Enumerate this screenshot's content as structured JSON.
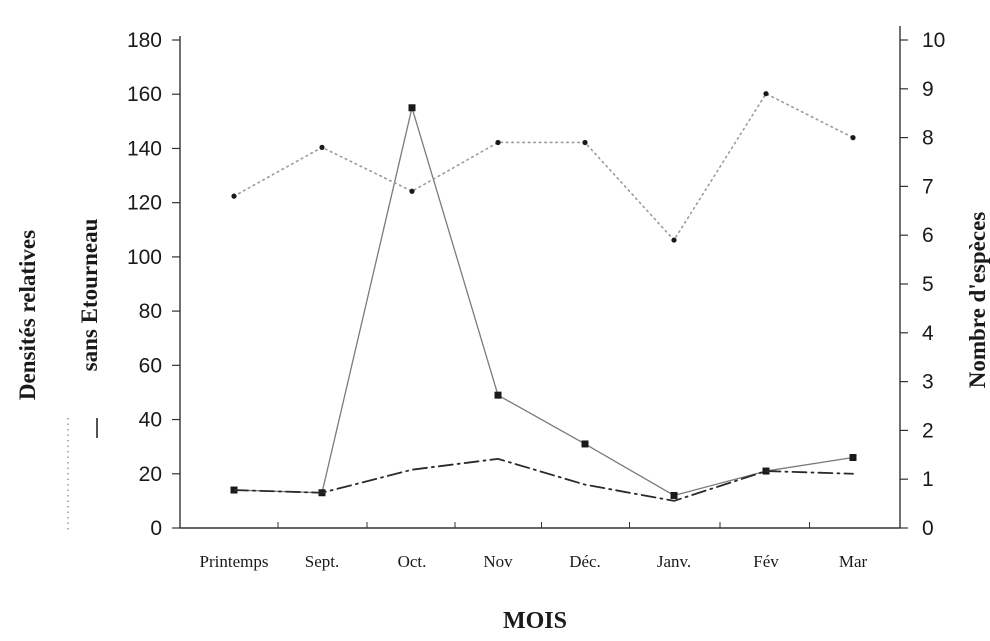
{
  "chart_data": {
    "type": "line",
    "categories": [
      "Printemps",
      "Sept.",
      "Oct.",
      "Nov",
      "Déc.",
      "Janv.",
      "Fév",
      "Mar"
    ],
    "xlabel": "MOIS",
    "ylabel_left_line1": "Densités relatives",
    "ylabel_left_line2": "sans Etourneau",
    "ylabel_right": "Nombre d'espèces",
    "ylim_left": [
      0,
      180
    ],
    "ylim_right": [
      0,
      10
    ],
    "yticks_left": [
      0,
      20,
      40,
      60,
      80,
      100,
      120,
      140,
      160,
      180
    ],
    "yticks_right": [
      0,
      1,
      2,
      3,
      4,
      5,
      6,
      7,
      8,
      9,
      10
    ],
    "grid": false,
    "series": [
      {
        "name": "",
        "axis": "left",
        "style": "solid-markers",
        "color": "#7a7a7a",
        "values": [
          14,
          13,
          155,
          49,
          31,
          12,
          21,
          26
        ]
      },
      {
        "name": "",
        "axis": "left",
        "style": "dash-dot",
        "color": "#2a2a2a",
        "values": [
          14,
          13,
          21.5,
          25.5,
          16,
          10,
          21,
          20
        ]
      },
      {
        "name": "",
        "axis": "right",
        "style": "dotted",
        "color": "#9a9a9a",
        "values": [
          6.8,
          7.8,
          6.9,
          7.9,
          7.9,
          5.9,
          8.9,
          8.0
        ]
      }
    ]
  }
}
